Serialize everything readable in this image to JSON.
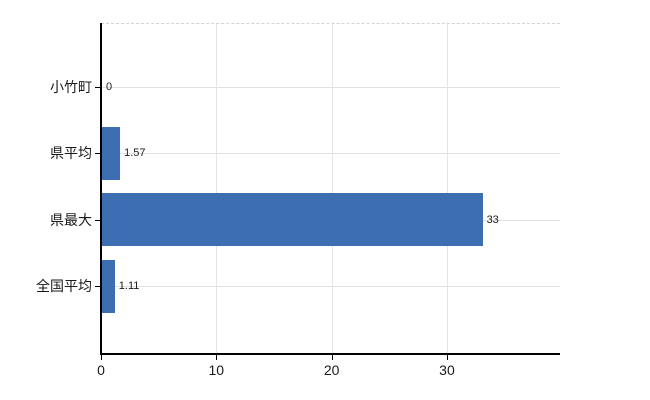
{
  "chart_data": {
    "type": "bar",
    "orientation": "horizontal",
    "title": "",
    "xlabel": "",
    "ylabel": "",
    "categories": [
      "小竹町",
      "県平均",
      "県最大",
      "全国平均"
    ],
    "values": [
      0,
      1.57,
      33,
      1.11
    ],
    "value_labels": [
      "0",
      "1.57",
      "33",
      "1.11"
    ],
    "x_ticks": [
      0,
      10,
      20,
      30
    ],
    "x_tick_labels": [
      "0",
      "10",
      "20",
      "30"
    ],
    "xlim": [
      0,
      39.8
    ],
    "grid": "on",
    "legend": "none",
    "colors": {
      "bar": "#3c6eb1",
      "horizontal_gridline": "#dde3dd",
      "vertical_gridline": "#e2e6e2",
      "top_border": "#d6d3d8",
      "axis": "#000000",
      "text": "#1a1a1a",
      "background": "#ffffff"
    }
  }
}
